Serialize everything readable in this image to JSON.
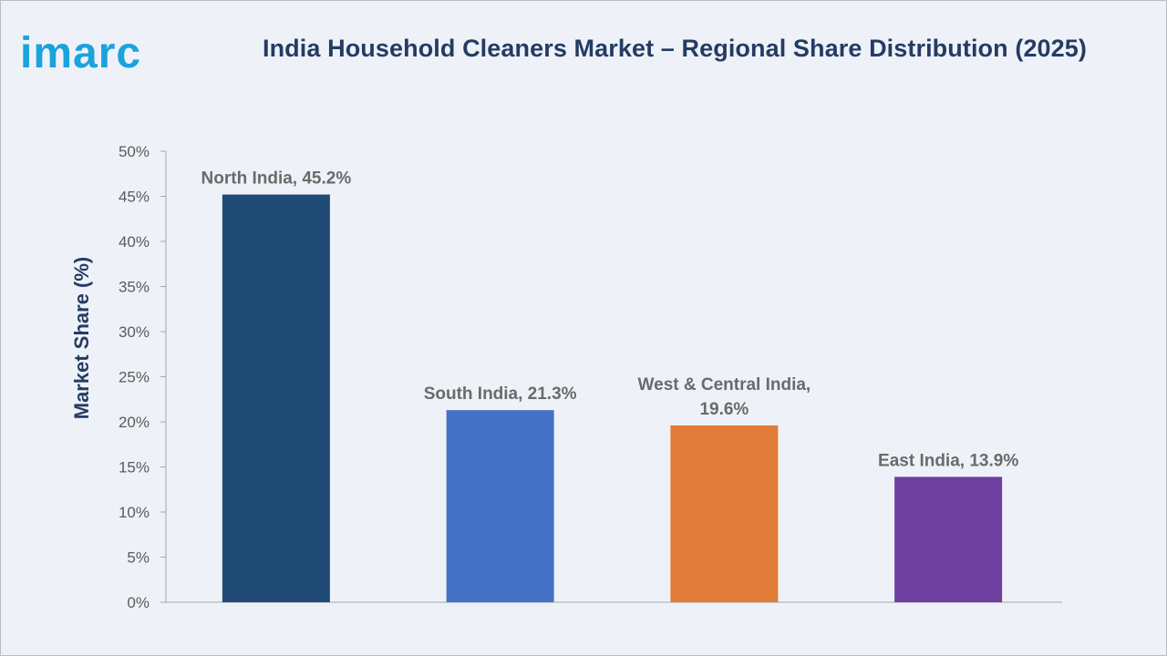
{
  "brand": {
    "logo_text": "imarc",
    "logo_color": "#1aa3dd"
  },
  "title": "India Household Cleaners Market – Regional Share Distribution (2025)",
  "chart_data": {
    "type": "bar",
    "title": "India Household Cleaners Market – Regional Share Distribution (2025)",
    "ylabel": "Market Share (%)",
    "xlabel": "",
    "ylim": [
      0,
      50
    ],
    "yticks": [
      0,
      5,
      10,
      15,
      20,
      25,
      30,
      35,
      40,
      45,
      50
    ],
    "ytick_labels": [
      "0%",
      "5%",
      "10%",
      "15%",
      "20%",
      "25%",
      "30%",
      "35%",
      "40%",
      "45%",
      "50%"
    ],
    "grid": false,
    "legend": "none",
    "categories": [
      "North India",
      "South India",
      "West & Central India",
      "East India"
    ],
    "values": [
      45.2,
      21.3,
      19.6,
      13.9
    ],
    "data_labels": [
      [
        "North India, 45.2%"
      ],
      [
        "South India, 21.3%"
      ],
      [
        "West & Central India,",
        "19.6%"
      ],
      [
        "East India, 13.9%"
      ]
    ],
    "colors": [
      "#1f4a73",
      "#4472c4",
      "#e07b39",
      "#6f3fa0"
    ]
  }
}
